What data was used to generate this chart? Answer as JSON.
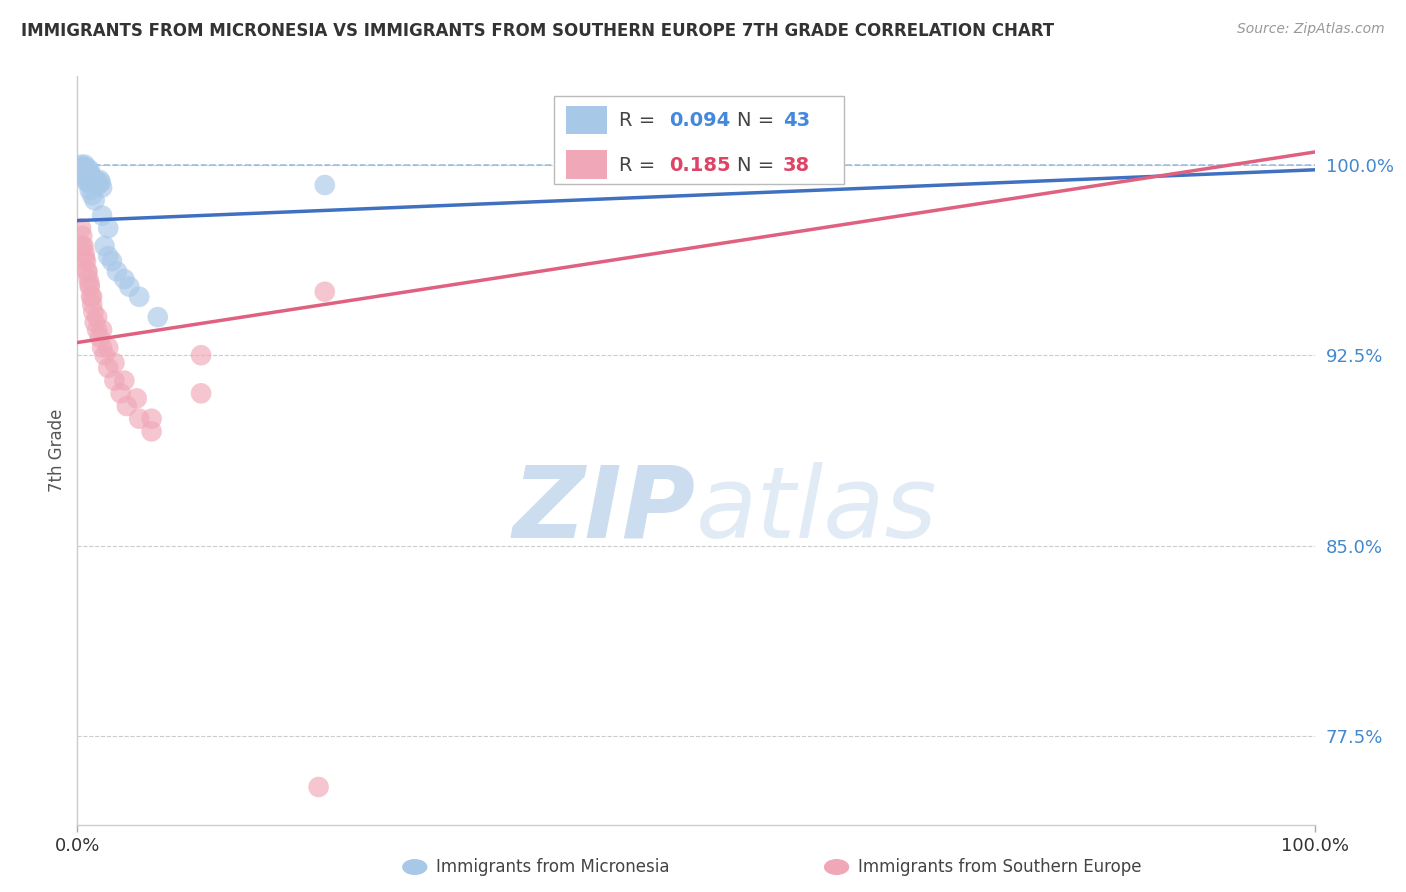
{
  "title": "IMMIGRANTS FROM MICRONESIA VS IMMIGRANTS FROM SOUTHERN EUROPE 7TH GRADE CORRELATION CHART",
  "source": "Source: ZipAtlas.com",
  "ylabel": "7th Grade",
  "ytick_labels": [
    "77.5%",
    "85.0%",
    "92.5%",
    "100.0%"
  ],
  "ytick_values": [
    0.775,
    0.85,
    0.925,
    1.0
  ],
  "xlim": [
    0.0,
    1.0
  ],
  "ylim": [
    0.74,
    1.035
  ],
  "blue_R": "0.094",
  "blue_N": "43",
  "pink_R": "0.185",
  "pink_N": "38",
  "blue_color": "#a8c8e8",
  "pink_color": "#f0a8b8",
  "blue_line_color": "#4070c0",
  "pink_line_color": "#e06080",
  "blue_text_color": "#4488dd",
  "pink_text_color": "#dd4466",
  "blue_trend_x0": 0.0,
  "blue_trend_y0": 0.978,
  "blue_trend_x1": 1.0,
  "blue_trend_y1": 0.998,
  "pink_trend_x0": 0.0,
  "pink_trend_y0": 0.93,
  "pink_trend_x1": 1.0,
  "pink_trend_y1": 1.005,
  "blue_scatter_x": [
    0.003,
    0.004,
    0.005,
    0.005,
    0.006,
    0.006,
    0.007,
    0.007,
    0.008,
    0.008,
    0.009,
    0.009,
    0.01,
    0.01,
    0.011,
    0.011,
    0.012,
    0.012,
    0.013,
    0.014,
    0.015,
    0.016,
    0.017,
    0.018,
    0.019,
    0.02,
    0.022,
    0.025,
    0.028,
    0.032,
    0.038,
    0.042,
    0.05,
    0.065,
    0.2,
    0.004,
    0.006,
    0.008,
    0.01,
    0.012,
    0.014,
    0.02,
    0.025
  ],
  "blue_scatter_y": [
    1.0,
    0.998,
    0.999,
    0.997,
    1.0,
    0.998,
    0.999,
    0.996,
    0.998,
    0.994,
    0.997,
    0.993,
    0.998,
    0.994,
    0.996,
    0.993,
    0.995,
    0.993,
    0.994,
    0.993,
    0.994,
    0.993,
    0.992,
    0.994,
    0.993,
    0.991,
    0.968,
    0.964,
    0.962,
    0.958,
    0.955,
    0.952,
    0.948,
    0.94,
    0.992,
    0.999,
    0.996,
    0.993,
    0.99,
    0.988,
    0.986,
    0.98,
    0.975
  ],
  "pink_scatter_x": [
    0.003,
    0.004,
    0.005,
    0.006,
    0.007,
    0.008,
    0.009,
    0.01,
    0.011,
    0.012,
    0.013,
    0.014,
    0.016,
    0.018,
    0.02,
    0.022,
    0.025,
    0.03,
    0.035,
    0.04,
    0.05,
    0.06,
    0.004,
    0.006,
    0.008,
    0.01,
    0.012,
    0.016,
    0.02,
    0.025,
    0.03,
    0.038,
    0.048,
    0.06,
    0.1,
    0.1,
    0.2,
    0.195
  ],
  "pink_scatter_y": [
    0.975,
    0.972,
    0.968,
    0.965,
    0.962,
    0.958,
    0.955,
    0.952,
    0.948,
    0.945,
    0.942,
    0.938,
    0.935,
    0.932,
    0.928,
    0.925,
    0.92,
    0.915,
    0.91,
    0.905,
    0.9,
    0.895,
    0.968,
    0.963,
    0.958,
    0.953,
    0.948,
    0.94,
    0.935,
    0.928,
    0.922,
    0.915,
    0.908,
    0.9,
    0.91,
    0.925,
    0.95,
    0.755
  ],
  "watermark_zip": "ZIP",
  "watermark_atlas": "atlas",
  "grid_color": "#cccccc",
  "bottom_label_blue": "Immigrants from Micronesia",
  "bottom_label_pink": "Immigrants from Southern Europe",
  "background_color": "#ffffff"
}
